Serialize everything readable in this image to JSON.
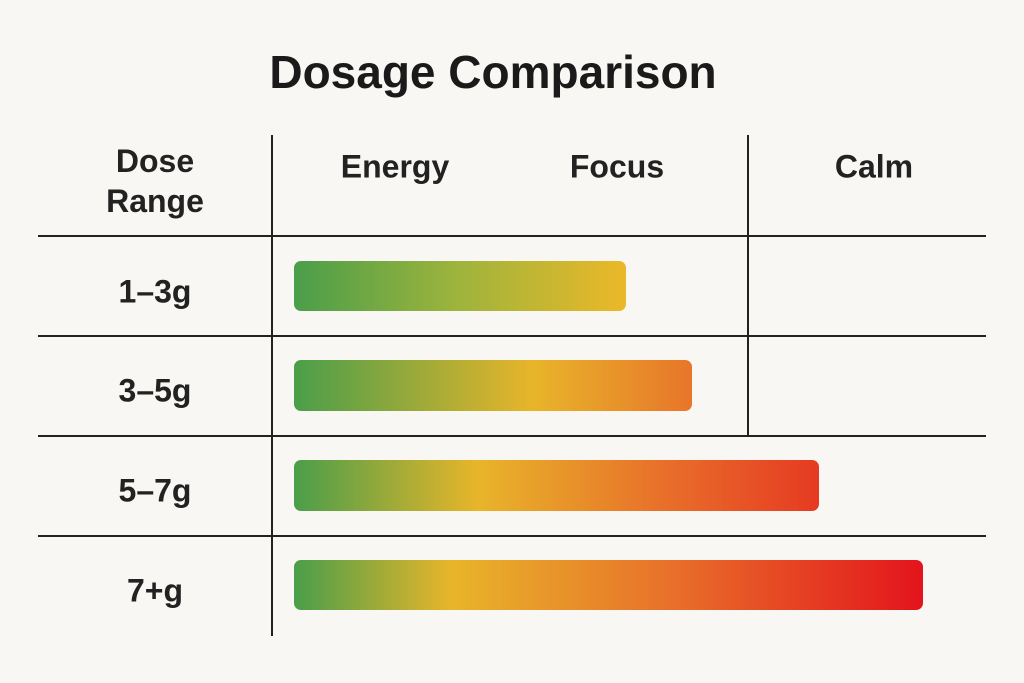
{
  "title": "Dosage Comparison",
  "table": {
    "header": [
      "Dose Range",
      "Energy",
      "Focus",
      "Calm"
    ],
    "rows": [
      [
        "1–3g"
      ],
      [
        "3–5g"
      ],
      [
        "5–7g"
      ],
      [
        "7+g"
      ]
    ]
  }
}
